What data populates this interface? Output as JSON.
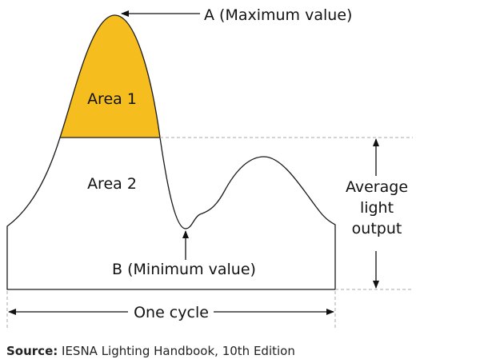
{
  "labels": {
    "max": "A (Maximum value)",
    "min": "B (Minimum value)",
    "area1": "Area 1",
    "area2": "Area 2",
    "average": [
      "Average",
      "light",
      "output"
    ],
    "cycle": "One cycle"
  },
  "source": {
    "prefix": "Source:",
    "text": "IESNA Lighting Handbook, 10th Edition"
  },
  "colors": {
    "area1": "#F5BE1E",
    "area2": "#E38A37",
    "outline": "#1a1a1a",
    "dashed": "#aaaaaa"
  }
}
